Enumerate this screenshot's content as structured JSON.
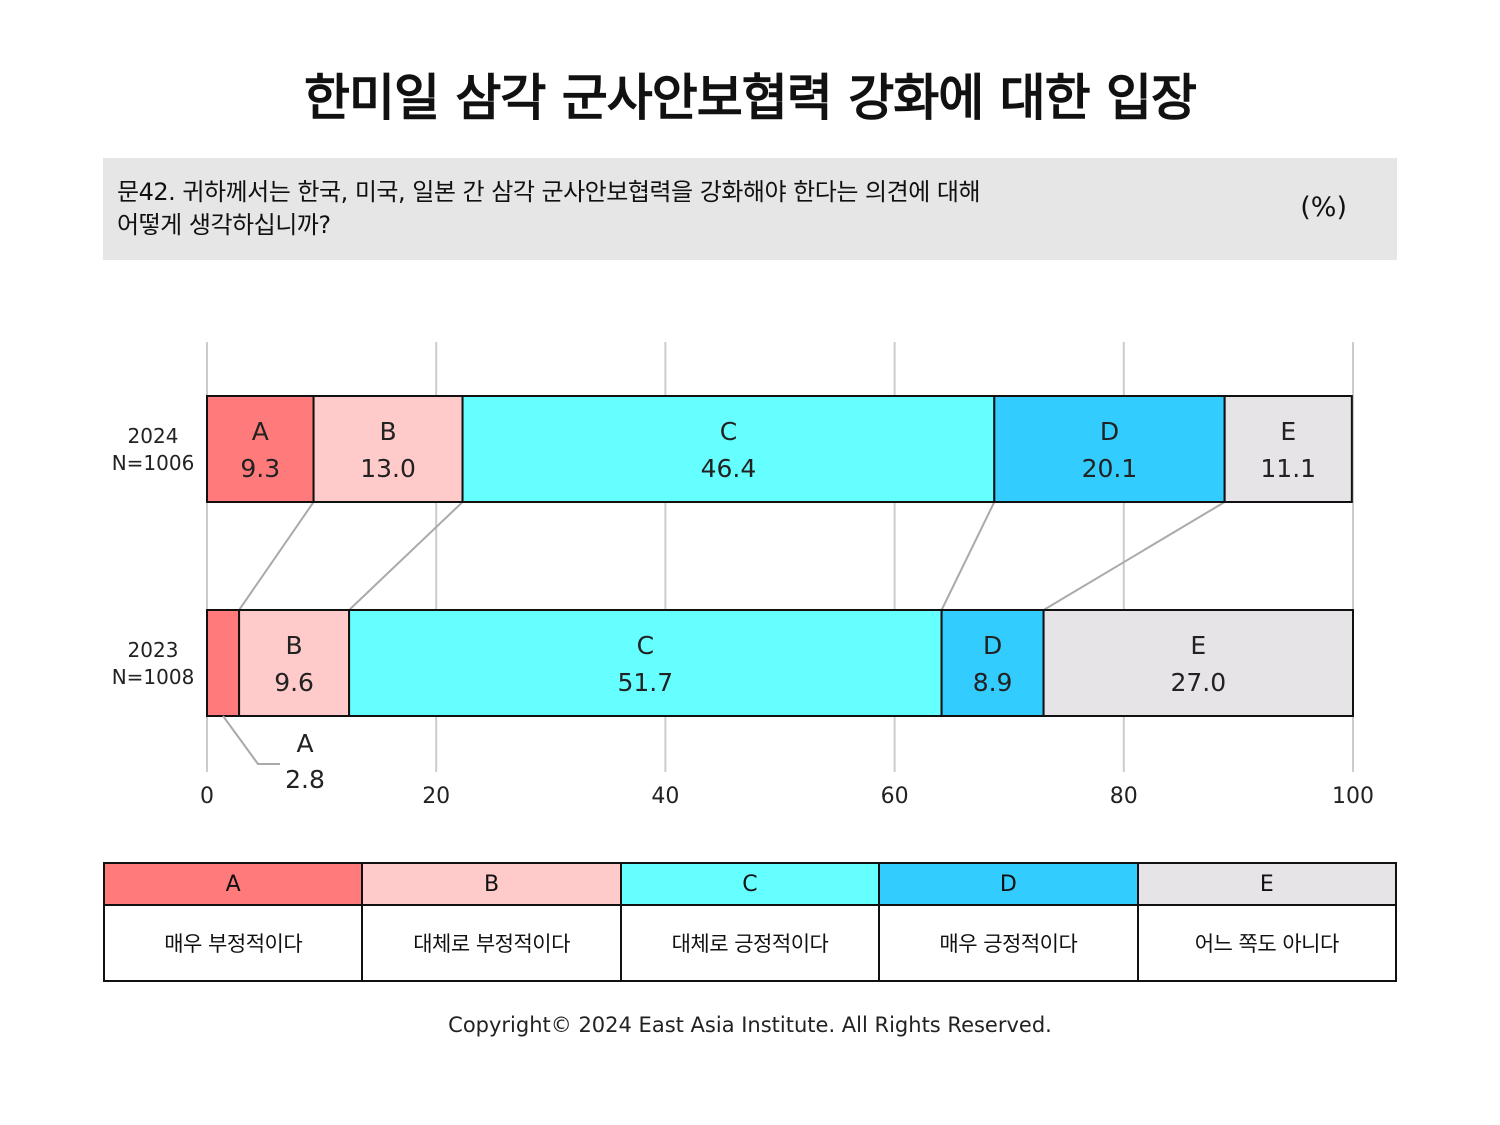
{
  "title": "한미일 삼각 군사안보협력 강화에 대한 입장",
  "question": {
    "line1": "문42. 귀하께서는 한국, 미국, 일본 간 삼각 군사안보협력을 강화해야 한다는 의견에 대해",
    "line2": "어떻게 생각하십니까?",
    "unit": "(%)"
  },
  "chart_data": {
    "type": "bar",
    "orientation": "horizontal",
    "stacked": true,
    "categories": [
      {
        "year": "2024",
        "n": "N=1006"
      },
      {
        "year": "2023",
        "n": "N=1008"
      }
    ],
    "series": [
      {
        "name": "A",
        "values": [
          9.3,
          2.8
        ]
      },
      {
        "name": "B",
        "values": [
          13.0,
          9.6
        ]
      },
      {
        "name": "C",
        "values": [
          46.4,
          51.7
        ]
      },
      {
        "name": "D",
        "values": [
          20.1,
          8.9
        ]
      },
      {
        "name": "E",
        "values": [
          11.1,
          27.0
        ]
      }
    ],
    "xlim": [
      0,
      100
    ],
    "xticks": [
      0,
      20,
      40,
      60,
      80,
      100
    ],
    "grid": true,
    "colors": {
      "A": "#ff7b7b",
      "B": "#ffcaca",
      "C": "#66ffff",
      "D": "#33ccff",
      "E": "#e6e4e6"
    }
  },
  "legend": [
    {
      "code": "A",
      "label": "매우 부정적이다",
      "color": "#ff7b7b"
    },
    {
      "code": "B",
      "label": "대체로 부정적이다",
      "color": "#ffcaca"
    },
    {
      "code": "C",
      "label": "대체로 긍정적이다",
      "color": "#66ffff"
    },
    {
      "code": "D",
      "label": "매우 긍정적이다",
      "color": "#33ccff"
    },
    {
      "code": "E",
      "label": "어느 쪽도 아니다",
      "color": "#e6e4e6"
    }
  ],
  "copyright": "Copyright© 2024 East Asia Institute. All Rights Reserved."
}
